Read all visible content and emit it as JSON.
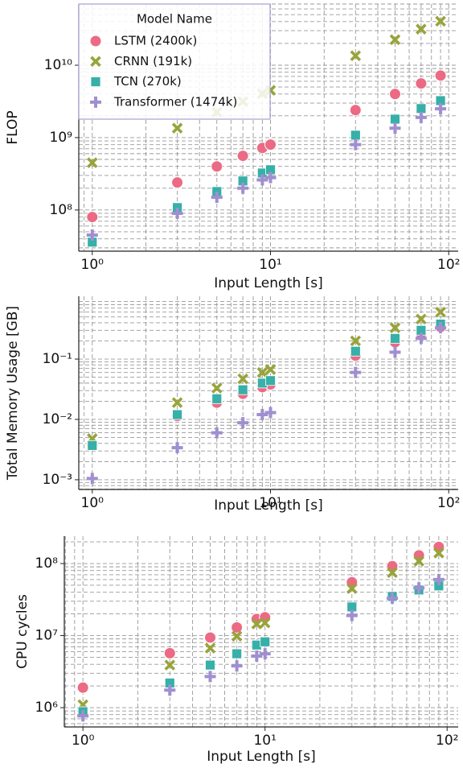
{
  "chart_data": [
    {
      "type": "scatter",
      "xlabel": "Input Length [s]",
      "ylabel": "FLOP",
      "xscale": "log",
      "yscale": "log",
      "grid": true,
      "legend_title": "Model Name",
      "legend_loc": "upper left",
      "x": [
        1,
        3,
        5,
        7,
        9,
        10,
        30,
        50,
        70,
        90
      ],
      "xlim": [
        0.84,
        113
      ],
      "ylim": [
        27000000,
        70000000000
      ],
      "xticks": [
        {
          "value": 1,
          "label": "10⁰"
        },
        {
          "value": 10,
          "label": "10¹"
        },
        {
          "value": 100,
          "label": "10²"
        }
      ],
      "yticks": [
        {
          "value": 100000000,
          "label": "10⁸"
        },
        {
          "value": 1000000000,
          "label": "10⁹"
        },
        {
          "value": 10000000000,
          "label": "10¹⁰"
        }
      ],
      "series": [
        {
          "name": "LSTM (2400k)",
          "color": "#ec6a84",
          "marker": "circle",
          "values": [
            80000000,
            240000000,
            400000000,
            560000000,
            720000000,
            800000000,
            2400000000,
            4000000000,
            5600000000,
            7200000000
          ]
        },
        {
          "name": "CRNN (191k)",
          "color": "#98a43a",
          "marker": "x",
          "values": [
            450000000,
            1350000000,
            2250000000,
            3150000000,
            4050000000,
            4500000000,
            13500000000,
            22500000000,
            31500000000,
            40500000000
          ]
        },
        {
          "name": "TCN (270k)",
          "color": "#36b0a8",
          "marker": "square",
          "values": [
            36000000,
            108000000,
            180000000,
            252000000,
            324000000,
            360000000,
            1080000000,
            1800000000,
            2520000000,
            3240000000
          ]
        },
        {
          "name": "Transformer (1474k)",
          "color": "#a08fd0",
          "marker": "plus",
          "values": [
            45000000,
            90000000,
            150000000,
            200000000,
            260000000,
            280000000,
            800000000,
            1350000000,
            1900000000,
            2500000000
          ]
        }
      ]
    },
    {
      "type": "scatter",
      "xlabel": "Input Length [s]",
      "ylabel": "Total Memory Usage [GB]",
      "xscale": "log",
      "yscale": "log",
      "grid": true,
      "x": [
        1,
        3,
        5,
        7,
        9,
        10,
        30,
        50,
        70,
        90
      ],
      "xlim": [
        0.84,
        113
      ],
      "ylim": [
        0.00069,
        1.1
      ],
      "xticks": [
        {
          "value": 1,
          "label": "10⁰"
        },
        {
          "value": 10,
          "label": "10¹"
        },
        {
          "value": 100,
          "label": "10²"
        }
      ],
      "yticks": [
        {
          "value": 0.001,
          "label": "10⁻³"
        },
        {
          "value": 0.01,
          "label": "10⁻²"
        },
        {
          "value": 0.1,
          "label": "10⁻¹"
        }
      ],
      "series": [
        {
          "color": "#ec6a84",
          "marker": "circle",
          "values": [
            0.0038,
            0.0114,
            0.019,
            0.0266,
            0.0342,
            0.038,
            0.114,
            0.19,
            0.266,
            0.342
          ]
        },
        {
          "color": "#98a43a",
          "marker": "x",
          "values": [
            0.0048,
            0.019,
            0.033,
            0.047,
            0.06,
            0.067,
            0.2,
            0.33,
            0.46,
            0.6
          ]
        },
        {
          "color": "#36b0a8",
          "marker": "square",
          "values": [
            0.0037,
            0.012,
            0.022,
            0.031,
            0.04,
            0.044,
            0.135,
            0.22,
            0.3,
            0.38
          ]
        },
        {
          "color": "#a08fd0",
          "marker": "plus",
          "values": [
            0.00105,
            0.0034,
            0.006,
            0.0088,
            0.012,
            0.013,
            0.06,
            0.13,
            0.22,
            0.33
          ]
        }
      ]
    },
    {
      "type": "scatter",
      "xlabel": "Input Length [s]",
      "ylabel": "CPU cycles",
      "xscale": "log",
      "yscale": "log",
      "grid": true,
      "x": [
        1,
        3,
        5,
        7,
        9,
        10,
        30,
        50,
        70,
        90
      ],
      "xlim": [
        0.79,
        115
      ],
      "ylim": [
        540000,
        240000000
      ],
      "xticks": [
        {
          "value": 1,
          "label": "10⁰"
        },
        {
          "value": 10,
          "label": "10¹"
        },
        {
          "value": 100,
          "label": "10²"
        }
      ],
      "yticks": [
        {
          "value": 1000000,
          "label": "10⁶"
        },
        {
          "value": 10000000,
          "label": "10⁷"
        },
        {
          "value": 100000000,
          "label": "10⁸"
        }
      ],
      "series": [
        {
          "color": "#ec6a84",
          "marker": "circle",
          "values": [
            1900000,
            5700000,
            9400000,
            13000000,
            17000000,
            18000000,
            55000000,
            92000000,
            130000000,
            170000000
          ]
        },
        {
          "color": "#98a43a",
          "marker": "x",
          "values": [
            1100000,
            3900000,
            6700000,
            9800000,
            14500000,
            15000000,
            45000000,
            75000000,
            108000000,
            140000000
          ]
        },
        {
          "color": "#36b0a8",
          "marker": "square",
          "values": [
            880000,
            2200000,
            3900000,
            5600000,
            7400000,
            8200000,
            25000000,
            35000000,
            43000000,
            49000000
          ]
        },
        {
          "color": "#a08fd0",
          "marker": "plus",
          "values": [
            770000,
            1750000,
            2700000,
            3800000,
            5200000,
            5600000,
            19000000,
            33000000,
            46000000,
            60000000
          ]
        }
      ]
    }
  ]
}
